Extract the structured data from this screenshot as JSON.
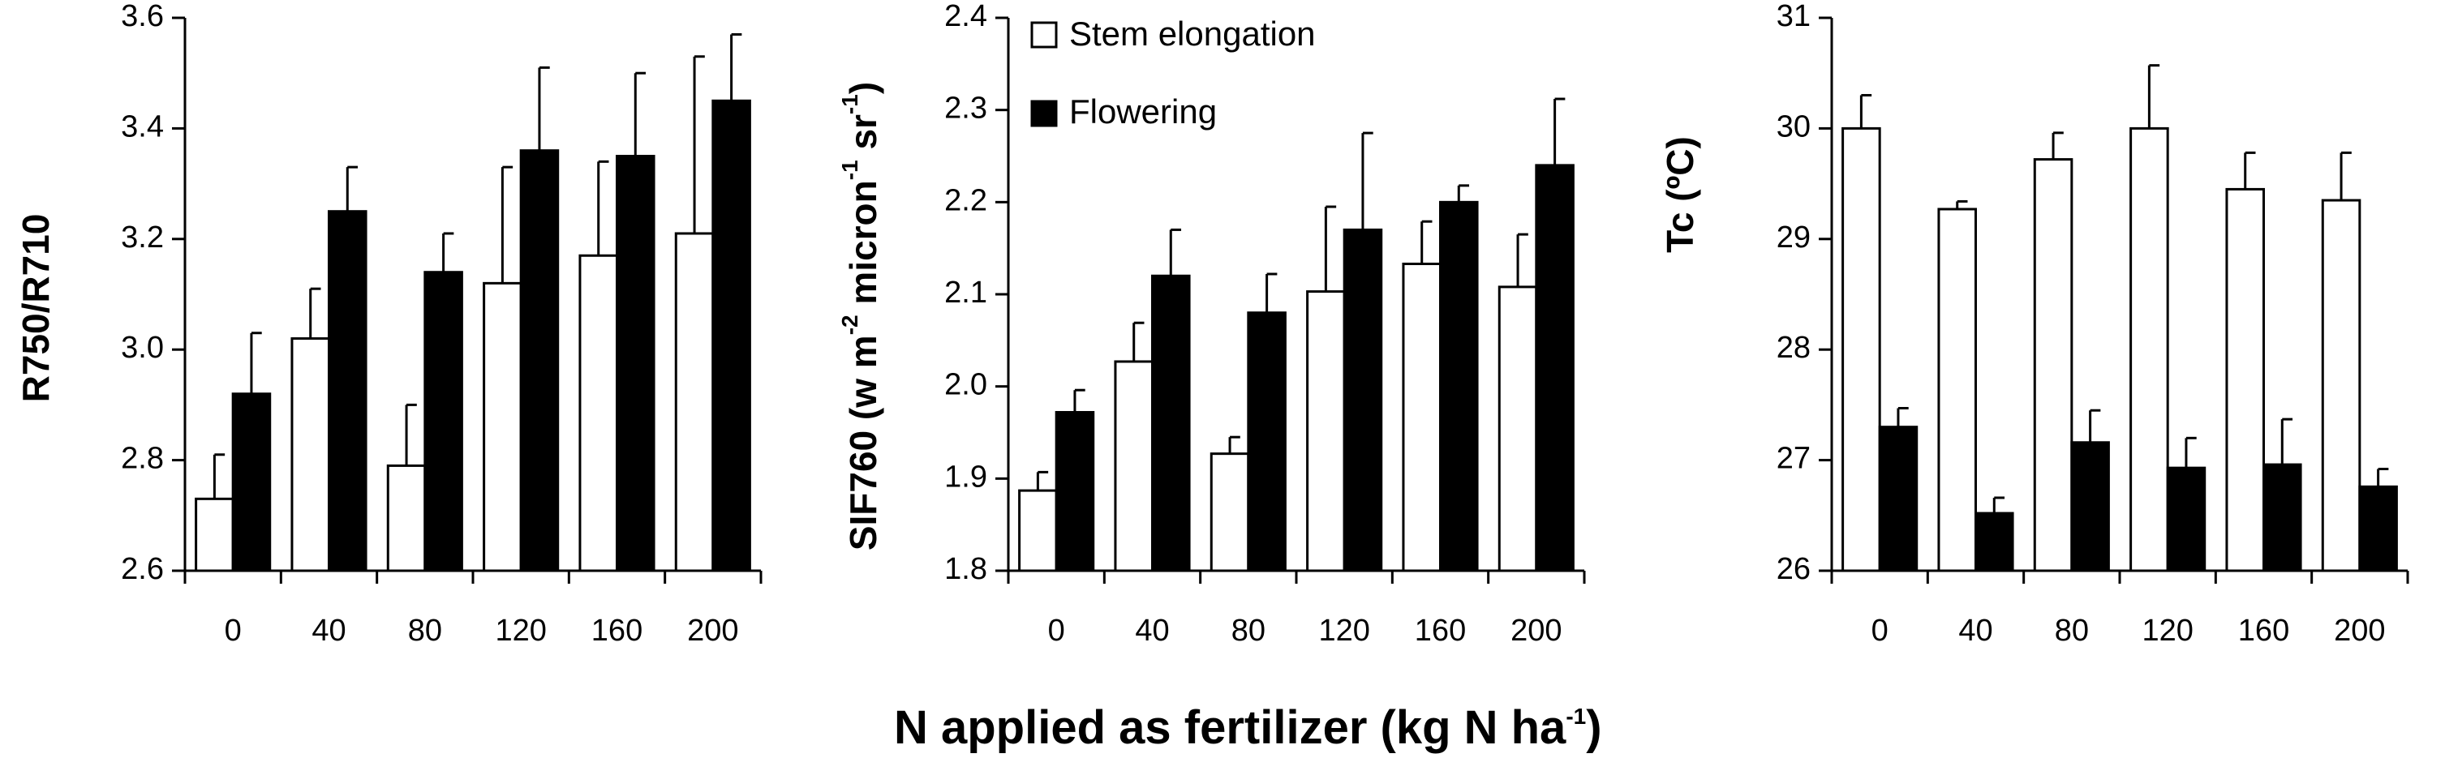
{
  "chart_data": [
    {
      "type": "bar",
      "panel": "left",
      "ylabel": "R750/R710",
      "ylim": [
        2.6,
        3.6
      ],
      "yticks": [
        "2.6",
        "2.8",
        "3.0",
        "3.2",
        "3.4",
        "3.6"
      ],
      "categories": [
        "0",
        "40",
        "80",
        "120",
        "160",
        "200"
      ],
      "series": [
        {
          "name": "Stem elongation",
          "values": [
            2.73,
            3.02,
            2.79,
            3.12,
            3.17,
            3.21
          ],
          "errors": [
            0.08,
            0.09,
            0.11,
            0.21,
            0.17,
            0.32
          ]
        },
        {
          "name": "Flowering",
          "values": [
            2.92,
            3.25,
            3.14,
            3.36,
            3.35,
            3.45
          ],
          "errors": [
            0.11,
            0.08,
            0.07,
            0.15,
            0.15,
            0.12
          ]
        }
      ]
    },
    {
      "type": "bar",
      "panel": "middle",
      "ylabel_parts": [
        "SIF760 (w m",
        "-2",
        " micron",
        "-1",
        " sr",
        "-1",
        ")"
      ],
      "ylim": [
        1.8,
        2.4
      ],
      "yticks": [
        "1.8",
        "1.9",
        "2.0",
        "2.1",
        "2.2",
        "2.3",
        "2.4"
      ],
      "categories": [
        "0",
        "40",
        "80",
        "120",
        "160",
        "200"
      ],
      "legend": [
        "Stem elongation",
        "Flowering"
      ],
      "series": [
        {
          "name": "Stem elongation",
          "values": [
            1.887,
            2.027,
            1.927,
            2.103,
            2.133,
            2.108
          ],
          "errors": [
            0.02,
            0.042,
            0.018,
            0.092,
            0.046,
            0.057
          ]
        },
        {
          "name": "Flowering",
          "values": [
            1.972,
            2.12,
            2.08,
            2.17,
            2.2,
            2.24
          ],
          "errors": [
            0.024,
            0.05,
            0.042,
            0.105,
            0.018,
            0.072
          ]
        }
      ]
    },
    {
      "type": "bar",
      "panel": "right",
      "ylabel": "Tc (ºC)",
      "ylim": [
        26,
        31
      ],
      "yticks": [
        "26",
        "27",
        "28",
        "29",
        "30",
        "31"
      ],
      "categories": [
        "0",
        "40",
        "80",
        "120",
        "160",
        "200"
      ],
      "series": [
        {
          "name": "Stem elongation",
          "values": [
            30.0,
            29.27,
            29.72,
            30.0,
            29.45,
            29.35
          ],
          "errors": [
            0.3,
            0.07,
            0.24,
            0.57,
            0.33,
            0.43
          ]
        },
        {
          "name": "Flowering",
          "values": [
            27.3,
            26.52,
            27.16,
            26.93,
            26.96,
            26.76
          ],
          "errors": [
            0.17,
            0.14,
            0.29,
            0.27,
            0.41,
            0.16
          ]
        }
      ]
    }
  ],
  "xlabel_parts": [
    "N applied  as fertilizer (kg N ha",
    "-1",
    ")"
  ],
  "colors": {
    "stem": "#ffffff",
    "flowering": "#000000",
    "axis": "#000000"
  }
}
